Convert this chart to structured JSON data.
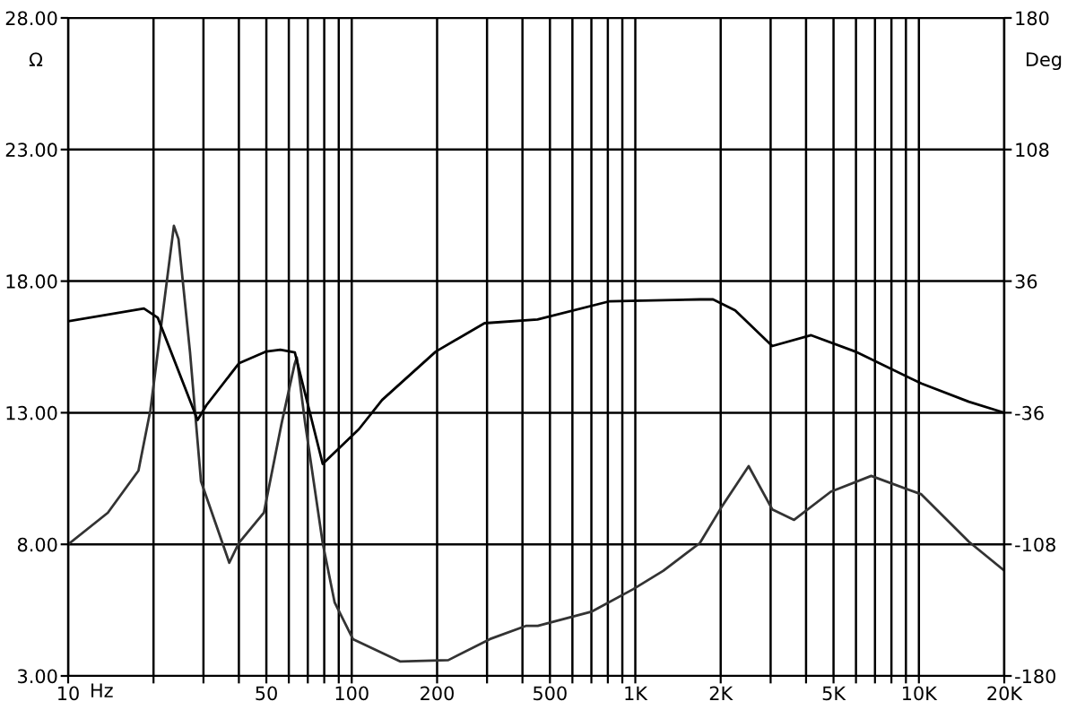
{
  "chart_data": {
    "type": "line",
    "xlabel": "Hz",
    "ylabel": "Ω",
    "y2label": "Deg",
    "log": "x",
    "grid": true,
    "line_style": "solid",
    "marker": "none",
    "xlim": [
      10,
      20000
    ],
    "ylim": [
      3,
      28
    ],
    "y2lim": [
      -180,
      180
    ],
    "xticks": [
      10,
      {
        "value": 20,
        "label": null
      },
      {
        "value": 30,
        "label": null
      },
      {
        "value": 40,
        "label": null
      },
      50,
      {
        "value": 60,
        "label": null
      },
      {
        "value": 70,
        "label": null
      },
      {
        "value": 80,
        "label": null
      },
      {
        "value": 90,
        "label": null
      },
      100,
      200,
      {
        "value": 300,
        "label": null
      },
      {
        "value": 400,
        "label": null
      },
      500,
      {
        "value": 600,
        "label": null
      },
      {
        "value": 700,
        "label": null
      },
      {
        "value": 800,
        "label": null
      },
      {
        "value": 900,
        "label": null
      },
      {
        "value": 1000,
        "label": "1K"
      },
      {
        "value": 2000,
        "label": "2K"
      },
      {
        "value": 3000,
        "label": null
      },
      {
        "value": 4000,
        "label": null
      },
      {
        "value": 5000,
        "label": "5K"
      },
      {
        "value": 6000,
        "label": null
      },
      {
        "value": 7000,
        "label": null
      },
      {
        "value": 8000,
        "label": null
      },
      {
        "value": 9000,
        "label": null
      },
      {
        "value": 10000,
        "label": "10K"
      },
      {
        "value": 20000,
        "label": "20K"
      }
    ],
    "yticks": [
      {
        "value": 3,
        "label": "3.00"
      },
      {
        "value": 8,
        "label": "8.00"
      },
      {
        "value": 13,
        "label": "13.00"
      },
      {
        "value": 18,
        "label": "18.00"
      },
      {
        "value": 23,
        "label": "23.00"
      },
      {
        "value": 28,
        "label": "28.00"
      }
    ],
    "y2ticks": [
      -180,
      -108,
      -36,
      36,
      108,
      180
    ],
    "series": [
      {
        "color": "#333333",
        "x": [
          10,
          13.8,
          17.7,
          19.5,
          23.6,
          24.5,
          26.9,
          29.4,
          37,
          40,
          49,
          56.6,
          62.9,
          64,
          68.5,
          79,
          87,
          101,
          148,
          219,
          307,
          411,
          453,
          704,
          984,
          1256,
          1689,
          2010,
          2510,
          3040,
          3630,
          4890,
          6790,
          10200,
          15000,
          20000
        ],
        "values": [
          8.0,
          9.2,
          10.8,
          13.1,
          20.1,
          19.6,
          15.3,
          10.4,
          7.3,
          8.05,
          9.2,
          12.6,
          14.85,
          15.1,
          12.6,
          8.05,
          5.8,
          4.4,
          3.55,
          3.6,
          4.4,
          4.9,
          4.9,
          5.45,
          6.3,
          7.0,
          8.05,
          9.4,
          10.97,
          9.33,
          8.93,
          10.0,
          10.6,
          9.9,
          8.1,
          7.0
        ]
      },
      {
        "color": "#000000",
        "axis": "y2",
        "x": [
          10,
          18.5,
          20.7,
          28.6,
          30.7,
          40,
          50,
          56,
          63,
          79,
          106,
          128,
          198,
          294,
          452,
          813,
          1690,
          1880,
          2250,
          3040,
          4170,
          5960,
          10200,
          15000,
          20000
        ],
        "values": [
          14,
          21,
          16,
          -40,
          -32,
          -9,
          -2.5,
          -1.5,
          -3,
          -64,
          -45,
          -29,
          -2.5,
          13,
          15,
          25,
          26,
          26,
          20,
          0.5,
          6.4,
          -2.5,
          -20,
          -30,
          -36
        ]
      }
    ]
  }
}
